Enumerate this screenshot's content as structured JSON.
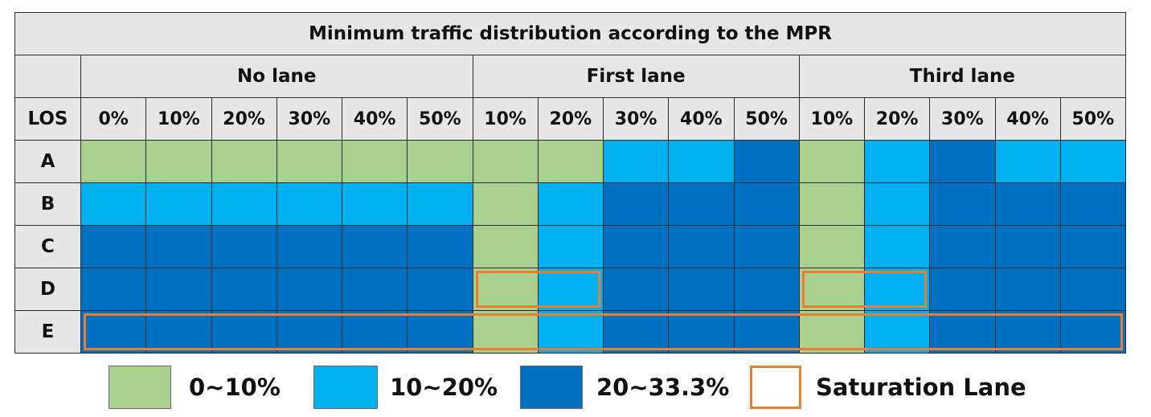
{
  "chart_data": {
    "type": "heatmap",
    "title": "Minimum traffic distribution according to the MPR",
    "row_header": "LOS",
    "rows": [
      "A",
      "B",
      "C",
      "D",
      "E"
    ],
    "groups": [
      {
        "name": "No lane",
        "columns": [
          "0%",
          "10%",
          "20%",
          "30%",
          "40%",
          "50%"
        ]
      },
      {
        "name": "First lane",
        "columns": [
          "10%",
          "20%",
          "30%",
          "40%",
          "50%"
        ]
      },
      {
        "name": "Third lane",
        "columns": [
          "10%",
          "20%",
          "30%",
          "40%",
          "50%"
        ]
      }
    ],
    "categories": [
      {
        "key": "c1",
        "label": "0~10%",
        "color": "#a9d08e"
      },
      {
        "key": "c2",
        "label": "10~20%",
        "color": "#00b0f0"
      },
      {
        "key": "c3",
        "label": "20~33.3%",
        "color": "#0070c0"
      }
    ],
    "values": [
      [
        "c1",
        "c1",
        "c1",
        "c1",
        "c1",
        "c1",
        "c1",
        "c1",
        "c2",
        "c2",
        "c3",
        "c1",
        "c2",
        "c3",
        "c2",
        "c2"
      ],
      [
        "c2",
        "c2",
        "c2",
        "c2",
        "c2",
        "c2",
        "c1",
        "c2",
        "c3",
        "c3",
        "c3",
        "c1",
        "c2",
        "c3",
        "c3",
        "c3"
      ],
      [
        "c3",
        "c3",
        "c3",
        "c3",
        "c3",
        "c3",
        "c1",
        "c2",
        "c3",
        "c3",
        "c3",
        "c1",
        "c2",
        "c3",
        "c3",
        "c3"
      ],
      [
        "c3",
        "c3",
        "c3",
        "c3",
        "c3",
        "c3",
        "c1",
        "c2",
        "c3",
        "c3",
        "c3",
        "c1",
        "c2",
        "c3",
        "c3",
        "c3"
      ],
      [
        "c3",
        "c3",
        "c3",
        "c3",
        "c3",
        "c3",
        "c1",
        "c2",
        "c3",
        "c3",
        "c3",
        "c1",
        "c2",
        "c3",
        "c3",
        "c3"
      ]
    ],
    "saturation_lane": {
      "label": "Saturation Lane",
      "color": "#ed7d31",
      "marks": [
        {
          "row": "D",
          "group": "First lane",
          "columns": [
            "10%",
            "20%"
          ]
        },
        {
          "row": "D",
          "group": "Third lane",
          "columns": [
            "10%",
            "20%"
          ]
        },
        {
          "row": "E",
          "group": "All",
          "columns": [
            "0%",
            "50%"
          ]
        }
      ]
    },
    "legend_position": "bottom"
  }
}
